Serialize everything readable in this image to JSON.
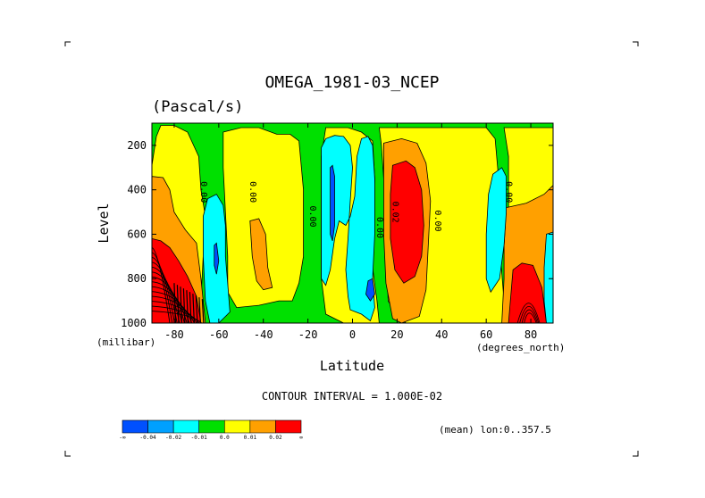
{
  "chart_data": {
    "type": "contour",
    "title": "OMEGA_1981-03_NCEP",
    "subtitle": "(Pascal/s)",
    "xlabel": "Latitude",
    "x_units": "(degrees_north)",
    "ylabel": "Level",
    "y_units": "(millibar)",
    "xlim": [
      -90,
      90
    ],
    "ylim": [
      1000,
      100
    ],
    "x_ticks": [
      -80,
      -60,
      -40,
      -20,
      0,
      20,
      40,
      60,
      80
    ],
    "y_ticks": [
      200,
      400,
      600,
      800,
      1000
    ],
    "contour_interval_text": "CONTOUR INTERVAL = 1.000E-02",
    "footnote": "(mean) lon:0..357.5",
    "contour_labels": [
      {
        "text": "0.00",
        "lat": -68,
        "level": 410
      },
      {
        "text": "0.00",
        "lat": -46,
        "level": 410
      },
      {
        "text": "0.00",
        "lat": -19,
        "level": 520
      },
      {
        "text": "0.00",
        "lat": 11,
        "level": 570
      },
      {
        "text": "0.02",
        "lat": 18,
        "level": 500
      },
      {
        "text": "0.00",
        "lat": 37,
        "level": 540
      },
      {
        "text": "0.00",
        "lat": 69,
        "level": 410
      }
    ],
    "colorbar": {
      "colors": [
        "#0050ff",
        "#00a0ff",
        "#00ffff",
        "#00e000",
        "#ffff00",
        "#ffa000",
        "#ff0000"
      ],
      "tick_labels": [
        "-∞",
        "-0.04",
        "-0.02",
        "-0.01",
        "0.0",
        "0.01",
        "0.02",
        "∞"
      ]
    },
    "regions": [
      {
        "class": "green",
        "lat_min": -90,
        "lat_max": 90,
        "lev_min": 100,
        "lev_max": 1000
      },
      {
        "class": "yellow",
        "poly": [
          [
            -86,
            110
          ],
          [
            -80,
            110
          ],
          [
            -74,
            140
          ],
          [
            -69,
            250
          ],
          [
            -68,
            400
          ],
          [
            -66,
            520
          ],
          [
            -67,
            700
          ],
          [
            -68,
            900
          ],
          [
            -68,
            1000
          ],
          [
            -90,
            1000
          ],
          [
            -90,
            290
          ],
          [
            -88,
            160
          ]
        ]
      },
      {
        "class": "yellow",
        "poly": [
          [
            -58,
            140
          ],
          [
            -50,
            120
          ],
          [
            -42,
            120
          ],
          [
            -34,
            150
          ],
          [
            -28,
            150
          ],
          [
            -24,
            180
          ],
          [
            -22,
            400
          ],
          [
            -22,
            700
          ],
          [
            -24,
            820
          ],
          [
            -27,
            900
          ],
          [
            -33,
            900
          ],
          [
            -42,
            920
          ],
          [
            -52,
            930
          ],
          [
            -56,
            860
          ],
          [
            -56,
            700
          ],
          [
            -57,
            500
          ],
          [
            -58,
            300
          ]
        ]
      },
      {
        "class": "yellow",
        "poly": [
          [
            -12,
            120
          ],
          [
            -2,
            120
          ],
          [
            4,
            140
          ],
          [
            9,
            180
          ],
          [
            10,
            350
          ],
          [
            9,
            550
          ],
          [
            9,
            750
          ],
          [
            11,
            900
          ],
          [
            12,
            1000
          ],
          [
            -4,
            1000
          ],
          [
            -12,
            960
          ],
          [
            -14,
            800
          ],
          [
            -14,
            500
          ],
          [
            -14,
            250
          ]
        ]
      },
      {
        "class": "yellow",
        "poly": [
          [
            12,
            120
          ],
          [
            45,
            120
          ],
          [
            60,
            120
          ],
          [
            64,
            170
          ],
          [
            66,
            400
          ],
          [
            66,
            650
          ],
          [
            68,
            900
          ],
          [
            72,
            1000
          ],
          [
            24,
            1000
          ],
          [
            20,
            970
          ],
          [
            16,
            900
          ],
          [
            15,
            600
          ],
          [
            14,
            350
          ],
          [
            13,
            200
          ]
        ]
      },
      {
        "class": "yellow",
        "poly": [
          [
            68,
            120
          ],
          [
            90,
            120
          ],
          [
            90,
            1000
          ],
          [
            72,
            1000
          ],
          [
            72,
            800
          ],
          [
            70,
            500
          ],
          [
            70,
            250
          ]
        ]
      },
      {
        "class": "orange",
        "poly": [
          [
            -90,
            340
          ],
          [
            -85,
            345
          ],
          [
            -82,
            400
          ],
          [
            -80,
            500
          ],
          [
            -75,
            580
          ],
          [
            -70,
            640
          ],
          [
            -68,
            800
          ],
          [
            -66,
            1000
          ],
          [
            -90,
            1000
          ]
        ]
      },
      {
        "class": "red",
        "poly": [
          [
            -90,
            620
          ],
          [
            -86,
            630
          ],
          [
            -82,
            660
          ],
          [
            -78,
            720
          ],
          [
            -74,
            790
          ],
          [
            -70,
            880
          ],
          [
            -68,
            1000
          ],
          [
            -90,
            1000
          ]
        ]
      },
      {
        "class": "orange",
        "poly": [
          [
            -46,
            540
          ],
          [
            -42,
            530
          ],
          [
            -39,
            600
          ],
          [
            -38,
            750
          ],
          [
            -36,
            840
          ],
          [
            -40,
            850
          ],
          [
            -43,
            810
          ],
          [
            -45,
            700
          ]
        ]
      },
      {
        "class": "orange",
        "poly": [
          [
            14,
            190
          ],
          [
            22,
            170
          ],
          [
            29,
            190
          ],
          [
            33,
            280
          ],
          [
            35,
            450
          ],
          [
            34,
            650
          ],
          [
            33,
            850
          ],
          [
            30,
            970
          ],
          [
            22,
            1000
          ],
          [
            18,
            980
          ],
          [
            15,
            820
          ],
          [
            14,
            600
          ],
          [
            14,
            350
          ]
        ]
      },
      {
        "class": "red",
        "poly": [
          [
            18,
            290
          ],
          [
            24,
            270
          ],
          [
            28,
            300
          ],
          [
            31,
            400
          ],
          [
            32,
            560
          ],
          [
            31,
            700
          ],
          [
            28,
            790
          ],
          [
            23,
            820
          ],
          [
            19,
            760
          ],
          [
            17,
            620
          ],
          [
            17,
            420
          ]
        ]
      },
      {
        "class": "orange",
        "poly": [
          [
            69,
            480
          ],
          [
            78,
            460
          ],
          [
            86,
            420
          ],
          [
            90,
            380
          ],
          [
            90,
            1000
          ],
          [
            67,
            1000
          ],
          [
            68,
            800
          ],
          [
            68,
            650
          ]
        ]
      },
      {
        "class": "red",
        "poly": [
          [
            72,
            760
          ],
          [
            76,
            730
          ],
          [
            81,
            740
          ],
          [
            85,
            840
          ],
          [
            87,
            1000
          ],
          [
            70,
            1000
          ],
          [
            71,
            880
          ]
        ]
      },
      {
        "class": "cyan",
        "poly": [
          [
            -67,
            520
          ],
          [
            -65,
            440
          ],
          [
            -61,
            420
          ],
          [
            -58,
            470
          ],
          [
            -57,
            560
          ],
          [
            -57,
            700
          ],
          [
            -56,
            820
          ],
          [
            -55,
            950
          ],
          [
            -60,
            1000
          ],
          [
            -64,
            1000
          ],
          [
            -66,
            900
          ],
          [
            -67,
            700
          ]
        ]
      },
      {
        "class": "cyan",
        "poly": [
          [
            -14,
            210
          ],
          [
            -12,
            170
          ],
          [
            -8,
            155
          ],
          [
            -4,
            160
          ],
          [
            -1,
            200
          ],
          [
            0,
            300
          ],
          [
            -1,
            450
          ],
          [
            -2,
            620
          ],
          [
            -3,
            760
          ],
          [
            -2,
            880
          ],
          [
            -1,
            940
          ],
          [
            4,
            960
          ],
          [
            8,
            990
          ],
          [
            10,
            930
          ],
          [
            9,
            800
          ],
          [
            10,
            600
          ],
          [
            10,
            350
          ],
          [
            9,
            200
          ],
          [
            7,
            160
          ],
          [
            4,
            170
          ],
          [
            2,
            250
          ],
          [
            1,
            430
          ],
          [
            -1,
            520
          ],
          [
            -3,
            560
          ],
          [
            -6,
            540
          ],
          [
            -8,
            620
          ],
          [
            -10,
            760
          ],
          [
            -12,
            830
          ],
          [
            -14,
            800
          ],
          [
            -14,
            600
          ],
          [
            -14,
            400
          ]
        ]
      },
      {
        "class": "cyan",
        "poly": [
          [
            63,
            330
          ],
          [
            67,
            300
          ],
          [
            69,
            340
          ],
          [
            69,
            500
          ],
          [
            68,
            650
          ],
          [
            66,
            800
          ],
          [
            62,
            860
          ],
          [
            60,
            800
          ],
          [
            60,
            600
          ],
          [
            61,
            420
          ]
        ]
      },
      {
        "class": "cyan",
        "poly": [
          [
            87,
            600
          ],
          [
            90,
            590
          ],
          [
            90,
            1000
          ],
          [
            87,
            1000
          ],
          [
            86,
            900
          ],
          [
            86,
            750
          ]
        ]
      },
      {
        "class": "blue",
        "poly": [
          [
            -10,
            300
          ],
          [
            -9,
            290
          ],
          [
            -8,
            340
          ],
          [
            -8,
            450
          ],
          [
            -8,
            560
          ],
          [
            -9,
            630
          ],
          [
            -10,
            600
          ],
          [
            -10,
            450
          ]
        ]
      },
      {
        "class": "blue",
        "poly": [
          [
            -62,
            650
          ],
          [
            -61,
            640
          ],
          [
            -60,
            720
          ],
          [
            -61,
            780
          ],
          [
            -62,
            740
          ]
        ]
      },
      {
        "class": "blue",
        "poly": [
          [
            7,
            810
          ],
          [
            9,
            800
          ],
          [
            10,
            870
          ],
          [
            8,
            900
          ],
          [
            6,
            870
          ]
        ]
      }
    ]
  }
}
